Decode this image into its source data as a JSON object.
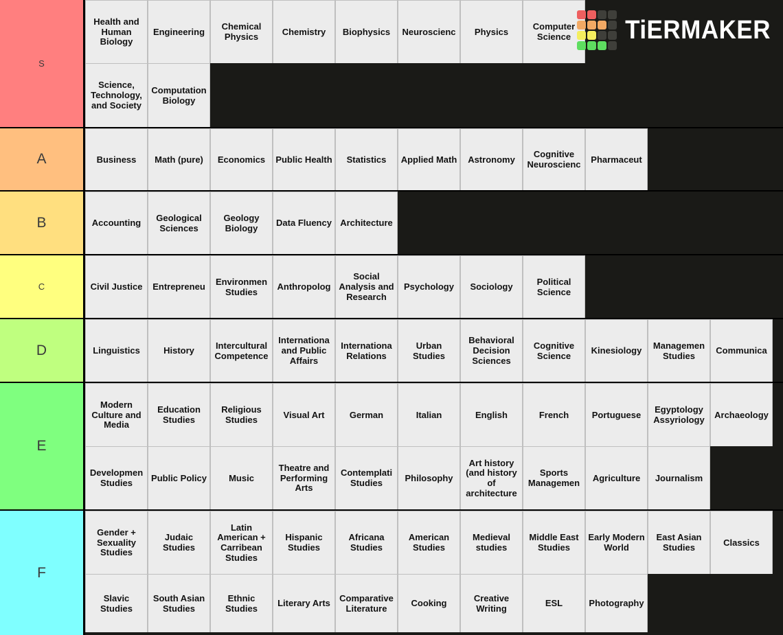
{
  "logo": {
    "text": "TiERMAKER",
    "grid": [
      [
        "#ee5f5f",
        "#ee5f5f",
        "#3f3f3a",
        "#3f3f3a"
      ],
      [
        "#f2a964",
        "#f2a964",
        "#f2a964",
        "#3f3f3a"
      ],
      [
        "#f4ee5e",
        "#f4ee5e",
        "#3f3f3a",
        "#3f3f3a"
      ],
      [
        "#5edd60",
        "#5edd60",
        "#5edd60",
        "#3f3f3a"
      ]
    ]
  },
  "tiers": [
    {
      "label": "S",
      "color": "#ff7f7f",
      "small_label": true,
      "lines": [
        [
          "Health and Human Biology",
          "Engineering",
          "Chemical Physics",
          "Chemistry",
          "Biophysics",
          "Neuroscienc",
          "Physics",
          "Computer Science"
        ],
        [
          "Science, Technology, and Society",
          "Computation Biology"
        ]
      ]
    },
    {
      "label": "A",
      "color": "#ffbf7f",
      "small_label": false,
      "lines": [
        [
          "Business",
          "Math (pure)",
          "Economics",
          "Public Health",
          "Statistics",
          "Applied Math",
          "Astronomy",
          "Cognitive Neuroscienc",
          "Pharmaceut"
        ]
      ]
    },
    {
      "label": "B",
      "color": "#ffdf7f",
      "small_label": false,
      "lines": [
        [
          "Accounting",
          "Geological Sciences",
          "Geology Biology",
          "Data Fluency",
          "Architecture"
        ]
      ]
    },
    {
      "label": "C",
      "color": "#ffff7f",
      "small_label": true,
      "lines": [
        [
          "Civil Justice",
          "Entrepreneu",
          "Environmen Studies",
          "Anthropolog",
          "Social Analysis and Research",
          "Psychology",
          "Sociology",
          "Political Science"
        ]
      ]
    },
    {
      "label": "D",
      "color": "#bfff7f",
      "small_label": false,
      "lines": [
        [
          "Linguistics",
          "History",
          "Intercultural Competence",
          "Internationa and Public Affairs",
          "Internationa Relations",
          "Urban Studies",
          "Behavioral Decision Sciences",
          "Cognitive Science",
          "Kinesiology",
          "Managemen Studies",
          "Communica"
        ]
      ]
    },
    {
      "label": "E",
      "color": "#7fff7f",
      "small_label": false,
      "lines": [
        [
          "Modern Culture and Media",
          "Education Studies",
          "Religious Studies",
          "Visual Art",
          "German",
          "Italian",
          "English",
          "French",
          "Portuguese",
          "Egyptology Assyriology",
          "Archaeology"
        ],
        [
          "Developmen Studies",
          "Public Policy",
          "Music",
          "Theatre and Performing Arts",
          "Contemplati Studies",
          "Philosophy",
          "Art history (and history of architecture",
          "Sports Managemen",
          "Agriculture",
          "Journalism"
        ]
      ]
    },
    {
      "label": "F",
      "color": "#7fffff",
      "small_label": false,
      "lines": [
        [
          "Gender + Sexuality Studies",
          "Judaic Studies",
          "Latin American + Carribean Studies",
          "Hispanic Studies",
          "Africana Studies",
          "American Studies",
          "Medieval studies",
          "Middle East Studies",
          "Early Modern World",
          "East Asian Studies",
          "Classics"
        ],
        [
          "Slavic Studies",
          "South Asian Studies",
          "Ethnic Studies",
          "Literary Arts",
          "Comparative Literature",
          "Cooking",
          "Creative Writing",
          "ESL",
          "Photography"
        ]
      ]
    }
  ]
}
